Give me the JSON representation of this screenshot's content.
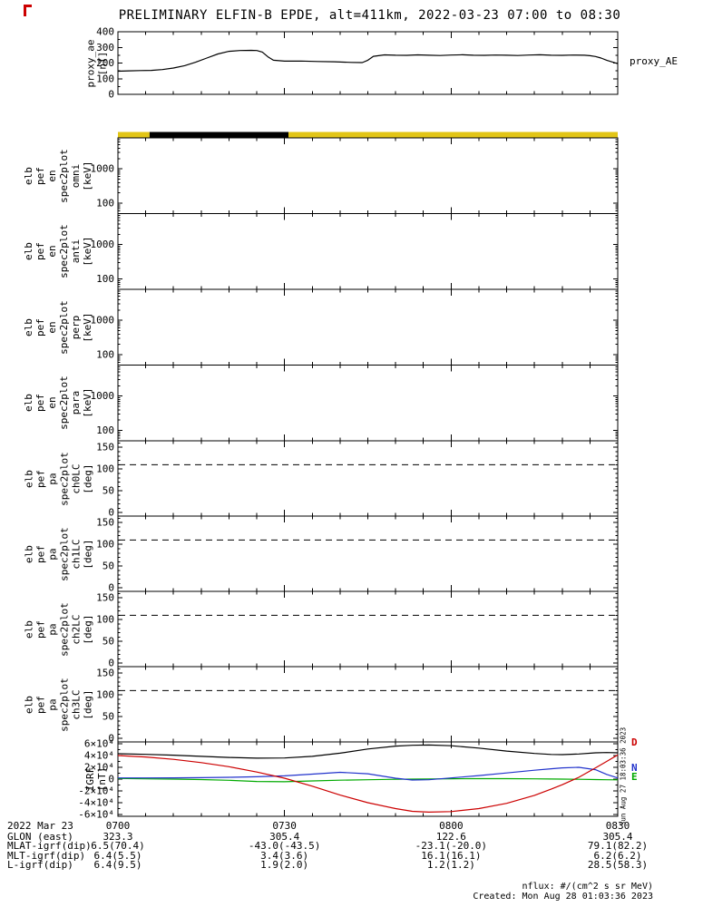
{
  "title": "PRELIMINARY ELFIN-B EPDE, alt=411km, 2022-03-23 07:00 to 08:30",
  "time_axis": {
    "tick_labels": [
      "0700",
      "0730",
      "0800",
      "0830"
    ],
    "tick_minutes": [
      0,
      30,
      60,
      90
    ],
    "minor_step_minutes": 5,
    "start": "07:00",
    "end": "08:30"
  },
  "proxy_panel": {
    "left_label_lines": [
      "proxy_ae",
      "[nT]"
    ],
    "right_label": "proxy_AE",
    "ytick_labels": [
      "400",
      "300",
      "200",
      "100",
      "0"
    ]
  },
  "status_bar": {
    "segments": [
      {
        "start_min": 0,
        "end_min": 5.7,
        "color": "#e2c516"
      },
      {
        "start_min": 5.7,
        "end_min": 30.7,
        "color": "#000000"
      },
      {
        "start_min": 30.7,
        "end_min": 90,
        "color": "#e2c516"
      }
    ]
  },
  "spec_panels": [
    {
      "left_label_lines": [
        "elb",
        "pef",
        "en",
        "spec2plot",
        "omni",
        "[keV]"
      ],
      "ytick_labels": [
        "1000",
        "100"
      ]
    },
    {
      "left_label_lines": [
        "elb",
        "pef",
        "en",
        "spec2plot",
        "anti",
        "[keV]"
      ],
      "ytick_labels": [
        "1000",
        "100"
      ]
    },
    {
      "left_label_lines": [
        "elb",
        "pef",
        "en",
        "spec2plot",
        "perp",
        "[keV]"
      ],
      "ytick_labels": [
        "1000",
        "100"
      ]
    },
    {
      "left_label_lines": [
        "elb",
        "pef",
        "en",
        "spec2plot",
        "para",
        "[keV]"
      ],
      "ytick_labels": [
        "1000",
        "100"
      ]
    }
  ],
  "lc_panels": [
    {
      "left_label_lines": [
        "elb",
        "pef",
        "pa",
        "spec2plot",
        "ch0LC",
        "[deg]"
      ],
      "ytick_labels": [
        "150",
        "100",
        "50",
        "0"
      ]
    },
    {
      "left_label_lines": [
        "elb",
        "pef",
        "pa",
        "spec2plot",
        "ch1LC",
        "[deg]"
      ],
      "ytick_labels": [
        "150",
        "100",
        "50",
        "0"
      ]
    },
    {
      "left_label_lines": [
        "elb",
        "pef",
        "pa",
        "spec2plot",
        "ch2LC",
        "[deg]"
      ],
      "ytick_labels": [
        "150",
        "100",
        "50",
        "0"
      ]
    },
    {
      "left_label_lines": [
        "elb",
        "pef",
        "pa",
        "spec2plot",
        "ch3LC",
        "[deg]"
      ],
      "ytick_labels": [
        "150",
        "100",
        "50",
        "0"
      ]
    }
  ],
  "igrf_panel": {
    "left_label_lines": [
      "IGRF",
      "[nT]"
    ],
    "ytick_labels": [
      "6×10⁴",
      "4×10⁴",
      "2×10⁴",
      "0",
      "-2×10⁴",
      "-4×10⁴",
      "-6×10⁴"
    ],
    "right_component_labels": [
      {
        "text": "D",
        "color": "#cc0000"
      },
      {
        "text": "N",
        "color": "#2233cc"
      },
      {
        "text": "E",
        "color": "#00aa00"
      }
    ],
    "side_timestamp": "Sun Aug 27 18:03:36 2023"
  },
  "footer": {
    "date_label": "2022 Mar 23",
    "rows": [
      {
        "label": "GLON (east)",
        "values": [
          "323.3",
          "305.4",
          "122.6",
          "305.4"
        ]
      },
      {
        "label": "MLAT-igrf(dip)",
        "values": [
          "6.5(70.4)",
          "-43.0(-43.5)",
          "-23.1(-20.0)",
          "79.1(82.2)"
        ]
      },
      {
        "label": "MLT-igrf(dip)",
        "values": [
          "6.4(5.5)",
          "3.4(3.6)",
          "16.1(16.1)",
          "6.2(6.2)"
        ]
      },
      {
        "label": "L-igrf(dip)",
        "values": [
          "6.4(9.5)",
          "1.9(2.0)",
          "1.2(1.2)",
          "28.5(58.3)"
        ]
      }
    ]
  },
  "notes": {
    "flux_units": "nflux: #/(cm^2 s sr MeV)",
    "created": "Created: Mon Aug 28 01:03:36 2023"
  },
  "chart_data": [
    {
      "type": "line",
      "title": "proxy_AE",
      "ylabel": "proxy_ae [nT]",
      "ylim": [
        0,
        400
      ],
      "yticks": [
        0,
        100,
        200,
        300,
        400
      ],
      "x_unit": "minutes after 07:00 UT",
      "x_tick_labels": [
        "0700",
        "0730",
        "0800",
        "0830"
      ],
      "x_minutes": [
        0,
        2,
        4,
        6,
        8,
        10,
        12,
        14,
        16,
        18,
        20,
        22,
        24,
        25,
        26,
        27,
        28,
        30,
        33,
        36,
        39,
        42,
        44,
        45,
        46,
        48,
        50,
        52,
        54,
        56,
        58,
        60,
        62,
        64,
        66,
        68,
        70,
        72,
        74,
        76,
        78,
        80,
        82,
        84,
        85,
        86,
        87,
        88,
        90
      ],
      "values": [
        148,
        150,
        152,
        153,
        158,
        168,
        183,
        205,
        232,
        258,
        275,
        280,
        281,
        280,
        270,
        240,
        218,
        212,
        213,
        210,
        208,
        204,
        203,
        218,
        243,
        252,
        250,
        249,
        252,
        250,
        248,
        251,
        253,
        250,
        249,
        251,
        250,
        248,
        251,
        253,
        250,
        249,
        251,
        250,
        247,
        242,
        232,
        218,
        196
      ]
    },
    {
      "type": "heatmap",
      "title": "elb_pef_en_spec2plot (omni, anti, perp, para)",
      "ylabel": "energy [keV]",
      "yscale": "log",
      "ytick_labels": [
        "100",
        "1000"
      ],
      "series": [],
      "note": "all four energy-spectrogram panels are blank (no flux data rendered)"
    },
    {
      "type": "line",
      "title": "elb_pef_pa_spec2plot ch0LC/ch1LC/ch2LC/ch3LC",
      "ylabel": "pitch angle [deg]",
      "ylim": [
        0,
        150
      ],
      "yticks": [
        0,
        50,
        100,
        150
      ],
      "loss_cone_deg": 110,
      "line_style": "dashed horizontal line in each of the 4 panels"
    },
    {
      "type": "line",
      "title": "IGRF",
      "ylabel": "IGRF [nT]",
      "ylim": [
        -60000,
        60000
      ],
      "yticks": [
        -60000,
        -40000,
        -20000,
        0,
        20000,
        40000,
        60000
      ],
      "x_unit": "minutes after 07:00 UT",
      "x_minutes": [
        0,
        5,
        10,
        15,
        20,
        25,
        30,
        35,
        40,
        45,
        50,
        53,
        56,
        60,
        65,
        70,
        75,
        78,
        80,
        83,
        86,
        88,
        90
      ],
      "series": [
        {
          "name": "unlabeled_black",
          "color": "#000000",
          "values": [
            43000,
            42000,
            40500,
            38500,
            36800,
            35500,
            35800,
            38500,
            44000,
            51000,
            56000,
            57300,
            57800,
            56500,
            52500,
            47500,
            43500,
            41800,
            41500,
            42500,
            44500,
            45000,
            44500
          ]
        },
        {
          "name": "D",
          "color": "#cc0000",
          "values": [
            40000,
            37500,
            33500,
            28000,
            21000,
            12000,
            1500,
            -12000,
            -27000,
            -40000,
            -50000,
            -54500,
            -56000,
            -55000,
            -50000,
            -41000,
            -27500,
            -17000,
            -9500,
            3000,
            19000,
            30000,
            41000
          ]
        },
        {
          "name": "N",
          "color": "#2233cc",
          "values": [
            2000,
            2000,
            2200,
            2500,
            3000,
            4000,
            5500,
            8500,
            11500,
            9000,
            1500,
            -1500,
            -1000,
            2000,
            6000,
            10500,
            15000,
            17500,
            19000,
            20000,
            16000,
            8000,
            2000
          ]
        },
        {
          "name": "E",
          "color": "#00aa00",
          "values": [
            1000,
            500,
            0,
            -800,
            -2000,
            -4000,
            -4500,
            -3000,
            -1800,
            -1000,
            -300,
            0,
            300,
            600,
            800,
            700,
            400,
            200,
            0,
            -300,
            -700,
            -1000,
            -1300
          ]
        }
      ]
    }
  ]
}
